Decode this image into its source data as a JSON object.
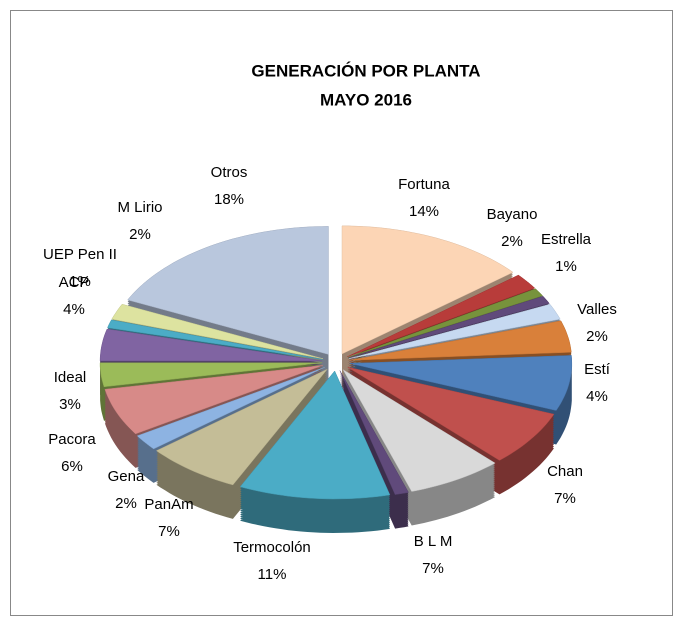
{
  "chart_data": {
    "type": "pie3d",
    "title": [
      "GENERACIÓN  POR  PLANTA",
      "MAYO  2016"
    ],
    "categories": [
      "Fortuna",
      "Bayano",
      "Estrella",
      null,
      "Valles",
      "Estí",
      "Chan",
      null,
      "B L M",
      null,
      "Termocolón",
      "PanAm",
      "Gena",
      "Pacora",
      "Ideal",
      "ACP",
      "UEP  Pen  II",
      "M Lirio",
      "Otros"
    ],
    "values": [
      14,
      2,
      1,
      1,
      2,
      4,
      7,
      7,
      7,
      1,
      11,
      7,
      2,
      6,
      3,
      4,
      1,
      2,
      18
    ],
    "value_labels": [
      "14%",
      "2%",
      "1%",
      null,
      "2%",
      "4%",
      "7%",
      null,
      "7%",
      null,
      "11%",
      "7%",
      "2%",
      "6%",
      "3%",
      "4%",
      "1%",
      "2%",
      "18%"
    ],
    "colors": [
      "#fcd5b5",
      "#b83c3a",
      "#77933c",
      "#604a7b",
      "#c6d9f1",
      "#d9803a",
      "#4f81bd",
      "#c0504d",
      "#d9d9d9",
      "#604a7b",
      "#4bacc6",
      "#c4bd97",
      "#8db3e2",
      "#d78a88",
      "#9bbb59",
      "#8064a2",
      "#4bacc6",
      "#dde3a0",
      "#b9c7dd"
    ]
  }
}
